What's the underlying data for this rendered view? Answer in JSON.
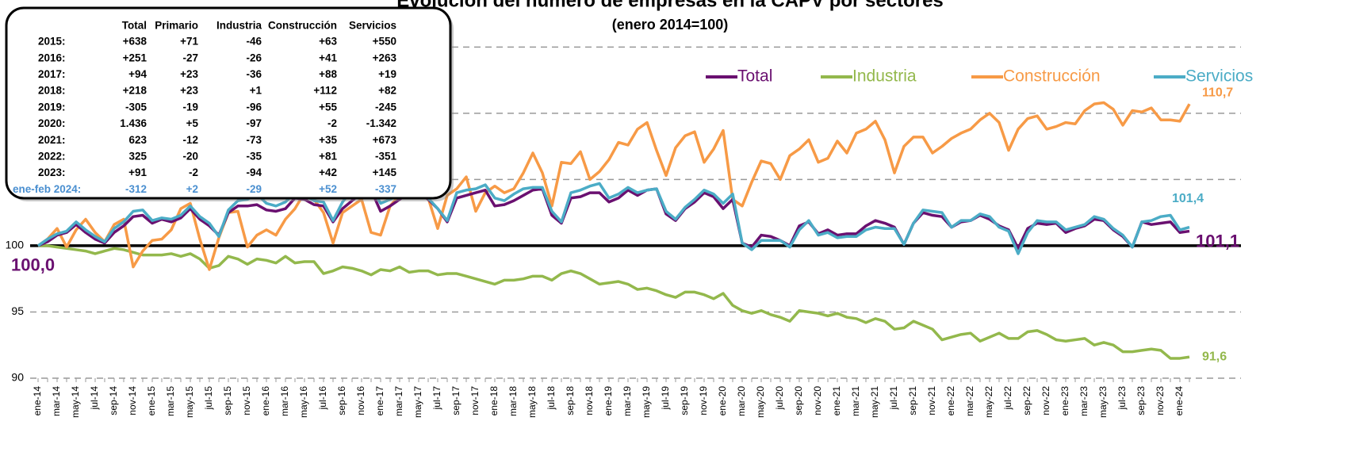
{
  "chart_data": {
    "type": "line",
    "title": "Evolución del número de empresas en la CAPV por sectores",
    "subtitle": "(enero 2014=100)",
    "categories": [
      "ene-14",
      null,
      "mar-14",
      null,
      "may-14",
      null,
      "jul-14",
      null,
      "sep-14",
      null,
      "nov-14",
      null,
      "ene-15",
      null,
      "mar-15",
      null,
      "may-15",
      null,
      "jul-15",
      null,
      "sep-15",
      null,
      "nov-15",
      null,
      "ene-16",
      null,
      "mar-16",
      null,
      "may-16",
      null,
      "jul-16",
      null,
      "sep-16",
      null,
      "nov-16",
      null,
      "ene-17",
      null,
      "mar-17",
      null,
      "may-17",
      null,
      "jul-17",
      null,
      "sep-17",
      null,
      "nov-17",
      null,
      "ene-18",
      null,
      "mar-18",
      null,
      "may-18",
      null,
      "jul-18",
      null,
      "sep-18",
      null,
      "nov-18",
      null,
      "ene-19",
      null,
      "mar-19",
      null,
      "may-19",
      null,
      "jul-19",
      null,
      "sep-19",
      null,
      "nov-19",
      null,
      "ene-20",
      null,
      "mar-20",
      null,
      "may-20",
      null,
      "jul-20",
      null,
      "sep-20",
      null,
      "nov-20",
      null,
      "ene-21",
      null,
      "mar-21",
      null,
      "may-21",
      null,
      "jul-21",
      null,
      "sep-21",
      null,
      "nov-21",
      null,
      "ene-22",
      null,
      "mar-22",
      null,
      "may-22",
      null,
      "jul-22",
      null,
      "sep-22",
      null,
      "nov-22",
      null,
      "ene-23",
      null,
      "mar-23",
      null,
      "may-23",
      null,
      "jul-23",
      null,
      "sep-23",
      null,
      "nov-23",
      null,
      "ene-24",
      null
    ],
    "series": [
      {
        "name": "Total",
        "color": "#6a1070",
        "start_label": "100,0",
        "end_label": "101,1",
        "values": [
          100,
          100.3,
          100.8,
          101.0,
          101.6,
          101.0,
          100.5,
          100.2,
          101.0,
          101.5,
          102.2,
          102.3,
          101.7,
          102.0,
          101.8,
          102.1,
          102.8,
          102.0,
          101.5,
          100.8,
          102.5,
          103.0,
          103.0,
          103.1,
          102.7,
          102.6,
          102.8,
          103.6,
          103.5,
          103.1,
          103.0,
          101.8,
          102.8,
          103.4,
          104.0,
          104.2,
          102.6,
          103.0,
          103.5,
          104.0,
          104.0,
          103.5,
          102.8,
          101.8,
          103.6,
          103.8,
          104.0,
          104.2,
          103.0,
          103.1,
          103.4,
          103.8,
          104.2,
          104.3,
          102.3,
          101.7,
          103.6,
          103.7,
          104.0,
          104.0,
          103.3,
          103.6,
          104.2,
          103.8,
          104.2,
          104.3,
          102.4,
          101.9,
          102.8,
          103.3,
          104.0,
          103.7,
          102.8,
          103.5,
          100.2,
          99.9,
          100.8,
          100.7,
          100.4,
          100.0,
          101.5,
          101.8,
          100.9,
          101.2,
          100.8,
          100.9,
          100.9,
          101.5,
          101.9,
          101.7,
          101.4,
          100.1,
          101.7,
          102.5,
          102.3,
          102.2,
          101.4,
          101.8,
          101.9,
          102.3,
          102.0,
          101.5,
          101.2,
          99.8,
          101.3,
          101.7,
          101.6,
          101.7,
          101.0,
          101.3,
          101.5,
          102.0,
          101.9,
          101.2,
          100.7,
          99.9,
          101.8,
          101.6,
          101.7,
          101.8,
          101.0,
          101.1
        ]
      },
      {
        "name": "Industria",
        "color": "#93b84c",
        "end_label": "91,6",
        "values": [
          100,
          100,
          99.9,
          99.8,
          99.7,
          99.6,
          99.4,
          99.6,
          99.8,
          99.7,
          99.5,
          99.3,
          99.3,
          99.3,
          99.4,
          99.2,
          99.4,
          99.0,
          98.3,
          98.5,
          99.2,
          99.0,
          98.6,
          99.0,
          98.9,
          98.7,
          99.2,
          98.7,
          98.8,
          98.8,
          97.9,
          98.1,
          98.4,
          98.3,
          98.1,
          97.8,
          98.2,
          98.1,
          98.4,
          98.0,
          98.1,
          98.1,
          97.8,
          97.9,
          97.9,
          97.7,
          97.5,
          97.3,
          97.1,
          97.4,
          97.4,
          97.5,
          97.7,
          97.7,
          97.4,
          97.9,
          98.1,
          97.9,
          97.5,
          97.1,
          97.2,
          97.3,
          97.1,
          96.7,
          96.8,
          96.6,
          96.3,
          96.1,
          96.5,
          96.5,
          96.3,
          96.0,
          96.4,
          95.5,
          95.1,
          94.9,
          95.1,
          94.8,
          94.6,
          94.3,
          95.1,
          95.0,
          94.9,
          94.7,
          94.9,
          94.6,
          94.5,
          94.2,
          94.5,
          94.3,
          93.7,
          93.8,
          94.3,
          94.0,
          93.7,
          92.9,
          93.1,
          93.3,
          93.4,
          92.8,
          93.1,
          93.4,
          93.0,
          93.0,
          93.5,
          93.6,
          93.3,
          92.9,
          92.8,
          92.9,
          93.0,
          92.5,
          92.7,
          92.5,
          92.0,
          92.0,
          92.1,
          92.2,
          92.1,
          91.5,
          91.5,
          91.6
        ]
      },
      {
        "name": "Construcción",
        "color": "#f79a46",
        "end_label": "110,7",
        "values": [
          100,
          100.5,
          101.3,
          99.9,
          101.2,
          102,
          101,
          100.3,
          101.6,
          102,
          98.4,
          99.6,
          100.4,
          100.5,
          101.2,
          102.8,
          103.2,
          100.5,
          98.2,
          100.6,
          102.5,
          102.6,
          99.9,
          100.8,
          101.2,
          100.8,
          102,
          102.8,
          104,
          103.5,
          102.5,
          100.2,
          102.5,
          103,
          103.5,
          101,
          100.8,
          103,
          103.8,
          104.5,
          105.2,
          103.6,
          101.3,
          103.8,
          104.3,
          105.2,
          102.6,
          104,
          104.5,
          104,
          104.3,
          105.5,
          107,
          105.5,
          103,
          106.3,
          106.2,
          107.1,
          105,
          105.6,
          106.5,
          107.8,
          107.6,
          108.8,
          109.3,
          107.2,
          105.3,
          107.4,
          108.3,
          108.6,
          106.3,
          107.3,
          108.7,
          103.5,
          103,
          104.8,
          106.4,
          106.2,
          105,
          106.8,
          107.3,
          108,
          106.3,
          106.6,
          107.9,
          107,
          108.5,
          108.8,
          109.4,
          108,
          105.5,
          107.5,
          108.2,
          108.2,
          107,
          107.5,
          108.1,
          108.5,
          108.8,
          109.5,
          110,
          109.3,
          107.2,
          108.8,
          109.6,
          109.8,
          108.8,
          109,
          109.3,
          109.2,
          110.2,
          110.7,
          110.8,
          110.3,
          109.1,
          110.2,
          110.1,
          110.4,
          109.5,
          109.5,
          109.4,
          110.7
        ]
      },
      {
        "name": "Servicios",
        "color": "#4bacc6",
        "end_label": "101,4",
        "values": [
          100,
          100.5,
          100.9,
          101.1,
          101.8,
          101.2,
          100.7,
          100.3,
          101.3,
          101.8,
          102.6,
          102.7,
          101.9,
          102.1,
          102.0,
          102.3,
          103.0,
          102.2,
          101.7,
          100.7,
          102.7,
          103.4,
          103.5,
          103.9,
          103.2,
          103.0,
          103.3,
          104.0,
          103.8,
          103.4,
          103.3,
          101.9,
          103.3,
          104.2,
          104.4,
          104.5,
          103.2,
          103.5,
          103.9,
          104.2,
          104.3,
          103.6,
          102.8,
          101.9,
          104.0,
          104.2,
          104.3,
          104.6,
          103.6,
          103.4,
          103.9,
          104.3,
          104.4,
          104.4,
          102.6,
          101.8,
          104.0,
          104.2,
          104.5,
          104.7,
          103.6,
          103.9,
          104.4,
          104.0,
          104.2,
          104.3,
          102.6,
          102.0,
          102.9,
          103.5,
          104.2,
          103.9,
          103.2,
          103.9,
          100.2,
          99.7,
          100.4,
          100.4,
          100.4,
          99.9,
          101.2,
          101.9,
          100.8,
          101.0,
          100.6,
          100.7,
          100.7,
          101.2,
          101.4,
          101.3,
          101.3,
          100.1,
          101.7,
          102.7,
          102.6,
          102.5,
          101.4,
          101.9,
          101.9,
          102.4,
          102.2,
          101.4,
          101.1,
          99.4,
          101.0,
          101.9,
          101.8,
          101.8,
          101.2,
          101.4,
          101.6,
          102.2,
          102.0,
          101.3,
          100.8,
          99.9,
          101.8,
          101.9,
          102.2,
          102.3,
          101.2,
          101.4
        ]
      }
    ],
    "ylim": [
      90,
      118
    ],
    "yticks": [
      90,
      95,
      100,
      105,
      110,
      115
    ],
    "grid": true,
    "baseline": 100,
    "legend": "top-right"
  },
  "table": {
    "columns": [
      "Total",
      "Primario",
      "Industria",
      "Construcción",
      "Servicios"
    ],
    "rows": [
      [
        "2015:",
        "+638",
        "+71",
        "-46",
        "+63",
        "+550"
      ],
      [
        "2016:",
        "+251",
        "-27",
        "-26",
        "+41",
        "+263"
      ],
      [
        "2017:",
        "+94",
        "+23",
        "-36",
        "+88",
        "+19"
      ],
      [
        "2018:",
        "+218",
        "+23",
        "+1",
        "+112",
        "+82"
      ],
      [
        "2019:",
        "-305",
        "-19",
        "-96",
        "+55",
        "-245"
      ],
      [
        "2020:",
        "1.436",
        "+5",
        "-97",
        "-2",
        "-1.342"
      ],
      [
        "2021:",
        "623",
        "-12",
        "-73",
        "+35",
        "+673"
      ],
      [
        "2022:",
        "325",
        "-20",
        "-35",
        "+81",
        "-351"
      ],
      [
        "2023:",
        "+91",
        "-2",
        "-94",
        "+42",
        "+145"
      ],
      [
        "ene-feb 2024:",
        "-312",
        "+2",
        "-29",
        "+52",
        "-337"
      ]
    ]
  }
}
